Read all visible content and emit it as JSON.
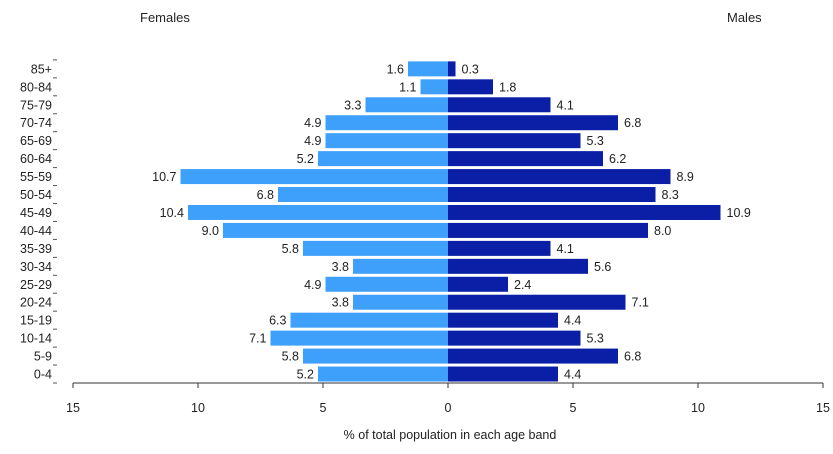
{
  "chart_data": {
    "type": "bar",
    "orientation": "horizontal-population-pyramid",
    "categories": [
      "0-4",
      "5-9",
      "10-14",
      "15-19",
      "20-24",
      "25-29",
      "30-34",
      "35-39",
      "40-44",
      "45-49",
      "50-54",
      "55-59",
      "60-64",
      "65-69",
      "70-74",
      "75-79",
      "80-84",
      "85+"
    ],
    "series": [
      {
        "name": "Females",
        "color": "#3fa0fb",
        "values": [
          5.2,
          5.8,
          7.1,
          6.3,
          3.8,
          4.9,
          3.8,
          5.8,
          9.0,
          10.4,
          6.8,
          10.7,
          5.2,
          4.9,
          4.9,
          3.3,
          1.1,
          1.6
        ]
      },
      {
        "name": "Males",
        "color": "#0a1ea6",
        "values": [
          4.4,
          6.8,
          5.3,
          4.4,
          7.1,
          2.4,
          5.6,
          4.1,
          8.0,
          10.9,
          8.3,
          8.9,
          6.2,
          5.3,
          6.8,
          4.1,
          1.8,
          0.3
        ]
      }
    ],
    "value_labels": {
      "females": [
        "5.2",
        "5.8",
        "7.1",
        "6.3",
        "3.8",
        "4.9",
        "3.8",
        "5.8",
        "9.0",
        "10.4",
        "6.8",
        "10.7",
        "5.2",
        "4.9",
        "4.9",
        "3.3",
        "1.1",
        "1.6"
      ],
      "males": [
        "4.4",
        "6.8",
        "5.3",
        "4.4",
        "7.1",
        "2.4",
        "5.6",
        "4.1",
        "8.0",
        "10.9",
        "8.3",
        "8.9",
        "6.2",
        "5.3",
        "6.8",
        "4.1",
        "1.8",
        "0.3"
      ]
    },
    "x_ticks": [
      "15",
      "10",
      "5",
      "0",
      "5",
      "10",
      "15"
    ],
    "xlim": [
      -15,
      15
    ],
    "xlabel": "% of total population in each age band",
    "ylabel": "",
    "grid": false,
    "legend": "none"
  },
  "labels": {
    "females": "Females",
    "males": "Males"
  }
}
